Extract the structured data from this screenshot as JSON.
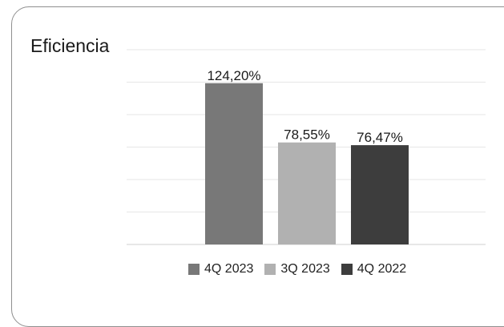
{
  "title": "Eficiencia",
  "chart_data": {
    "type": "bar",
    "categories": [
      "4Q 2023",
      "3Q 2023",
      "4Q 2022"
    ],
    "values": [
      124.2,
      78.55,
      76.47
    ],
    "value_labels": [
      "124,20%",
      "78,55%",
      "76,47%"
    ],
    "colors": [
      "#787878",
      "#b1b1b1",
      "#3d3d3d"
    ],
    "ylim": [
      0,
      150
    ],
    "grid": true,
    "legend": "bottom",
    "legend_entries": [
      "4Q 2023",
      "3Q 2023",
      "4Q 2022"
    ]
  }
}
